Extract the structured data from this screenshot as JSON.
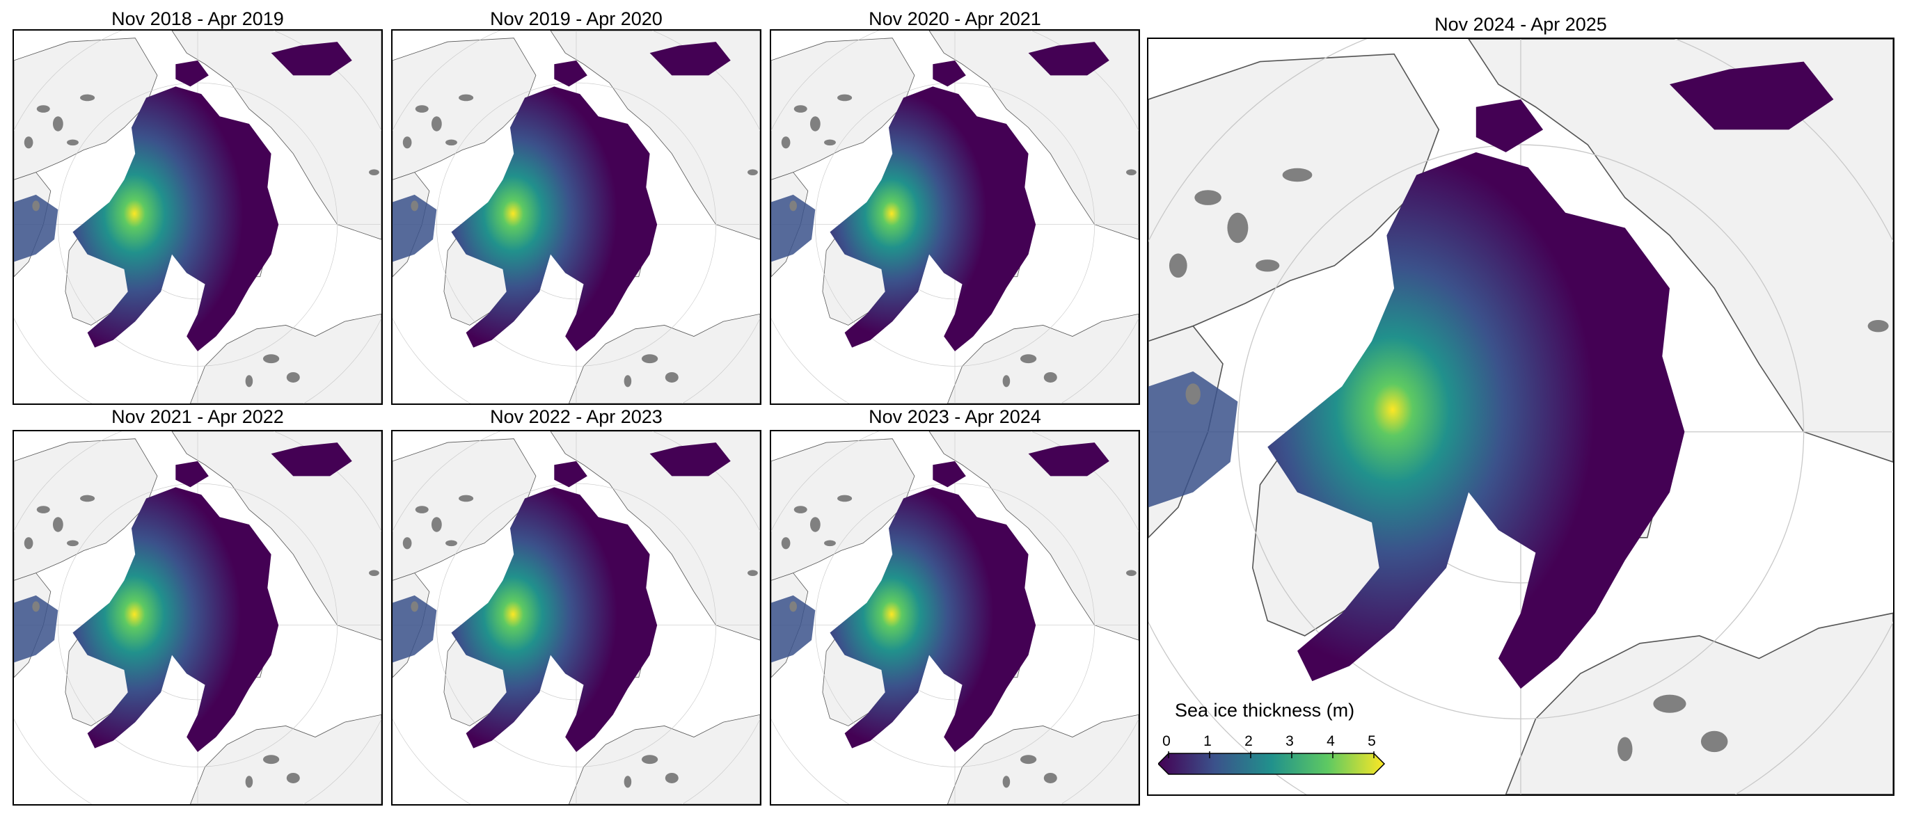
{
  "panels": [
    {
      "title": "Nov 2018 - Apr 2019",
      "thick_pct": 0.9
    },
    {
      "title": "Nov 2019 - Apr 2020",
      "thick_pct": 0.8
    },
    {
      "title": "Nov 2020 - Apr 2021",
      "thick_pct": 0.6
    },
    {
      "title": "Nov 2021 - Apr 2022",
      "thick_pct": 0.85
    },
    {
      "title": "Nov 2022 - Apr 2023",
      "thick_pct": 0.8
    },
    {
      "title": "Nov 2023 - Apr 2024",
      "thick_pct": 0.75
    },
    {
      "title": "Nov 2024 - Apr 2025",
      "thick_pct": 0.7
    }
  ],
  "colorbar": {
    "title": "Sea ice thickness (m)",
    "ticks": [
      "0",
      "1",
      "2",
      "3",
      "4",
      "5"
    ],
    "min": 0,
    "max": 5,
    "colormap": [
      "#440154",
      "#3b528b",
      "#21918c",
      "#5ec962",
      "#fde725"
    ]
  },
  "colors": {
    "land": "#f1f1f1",
    "lakes": "#808080",
    "ocean": "#ffffff",
    "coast": "#555555",
    "grid": "#c8c8c8"
  }
}
